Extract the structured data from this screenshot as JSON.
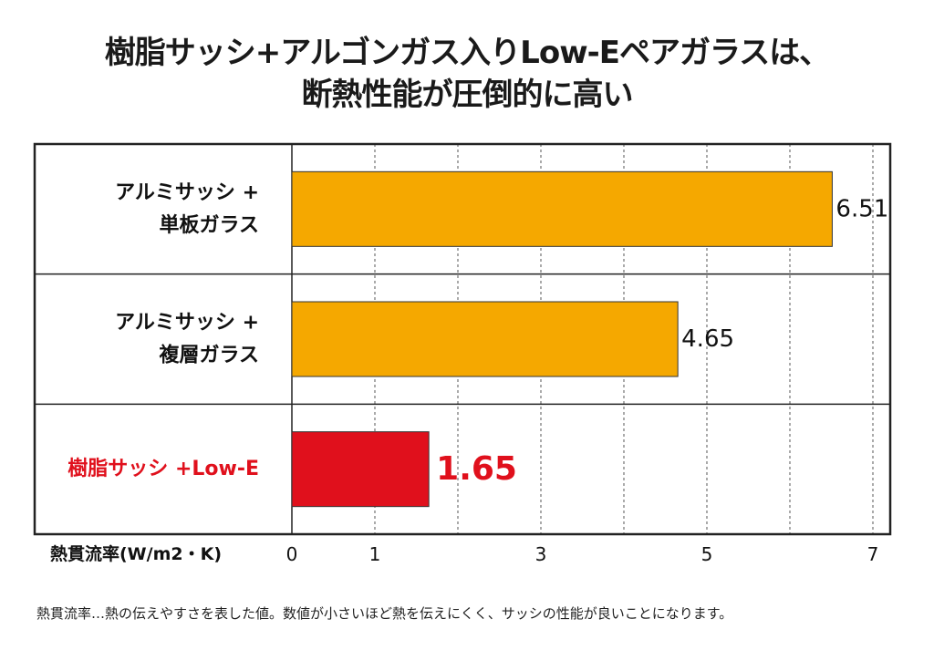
{
  "chart_data": {
    "type": "bar",
    "orientation": "horizontal",
    "title_lines": [
      "樹脂サッシ+アルゴンガス入りLow-Eペアガラスは、",
      "断熱性能が圧倒的に高い"
    ],
    "categories": [
      {
        "lines": [
          "アルミサッシ +",
          "単板ガラス"
        ],
        "highlight": false
      },
      {
        "lines": [
          "アルミサッシ +",
          "複層ガラス"
        ],
        "highlight": false
      },
      {
        "lines": [
          "樹脂サッシ +Low-E"
        ],
        "highlight": true
      }
    ],
    "values": [
      6.51,
      4.65,
      1.65
    ],
    "value_labels": [
      "6.51",
      "4.65",
      "1.65"
    ],
    "xlabel": "熱貫流率(W/m2・K)",
    "xlim": [
      0,
      7
    ],
    "ticks": [
      0,
      1,
      3,
      5,
      7
    ],
    "gridlines": [
      1,
      2,
      3,
      4,
      5,
      6,
      7
    ],
    "grid": "dashed-vertical",
    "colors": {
      "bar": "#f5a800",
      "highlight_bar": "#e0101c",
      "highlight_text": "#e0101c",
      "frame": "#222222"
    }
  },
  "footnote": "熱貫流率…熱の伝えやすさを表した値。数値が小さいほど熱を伝えにくく、サッシの性能が良いことになります。"
}
